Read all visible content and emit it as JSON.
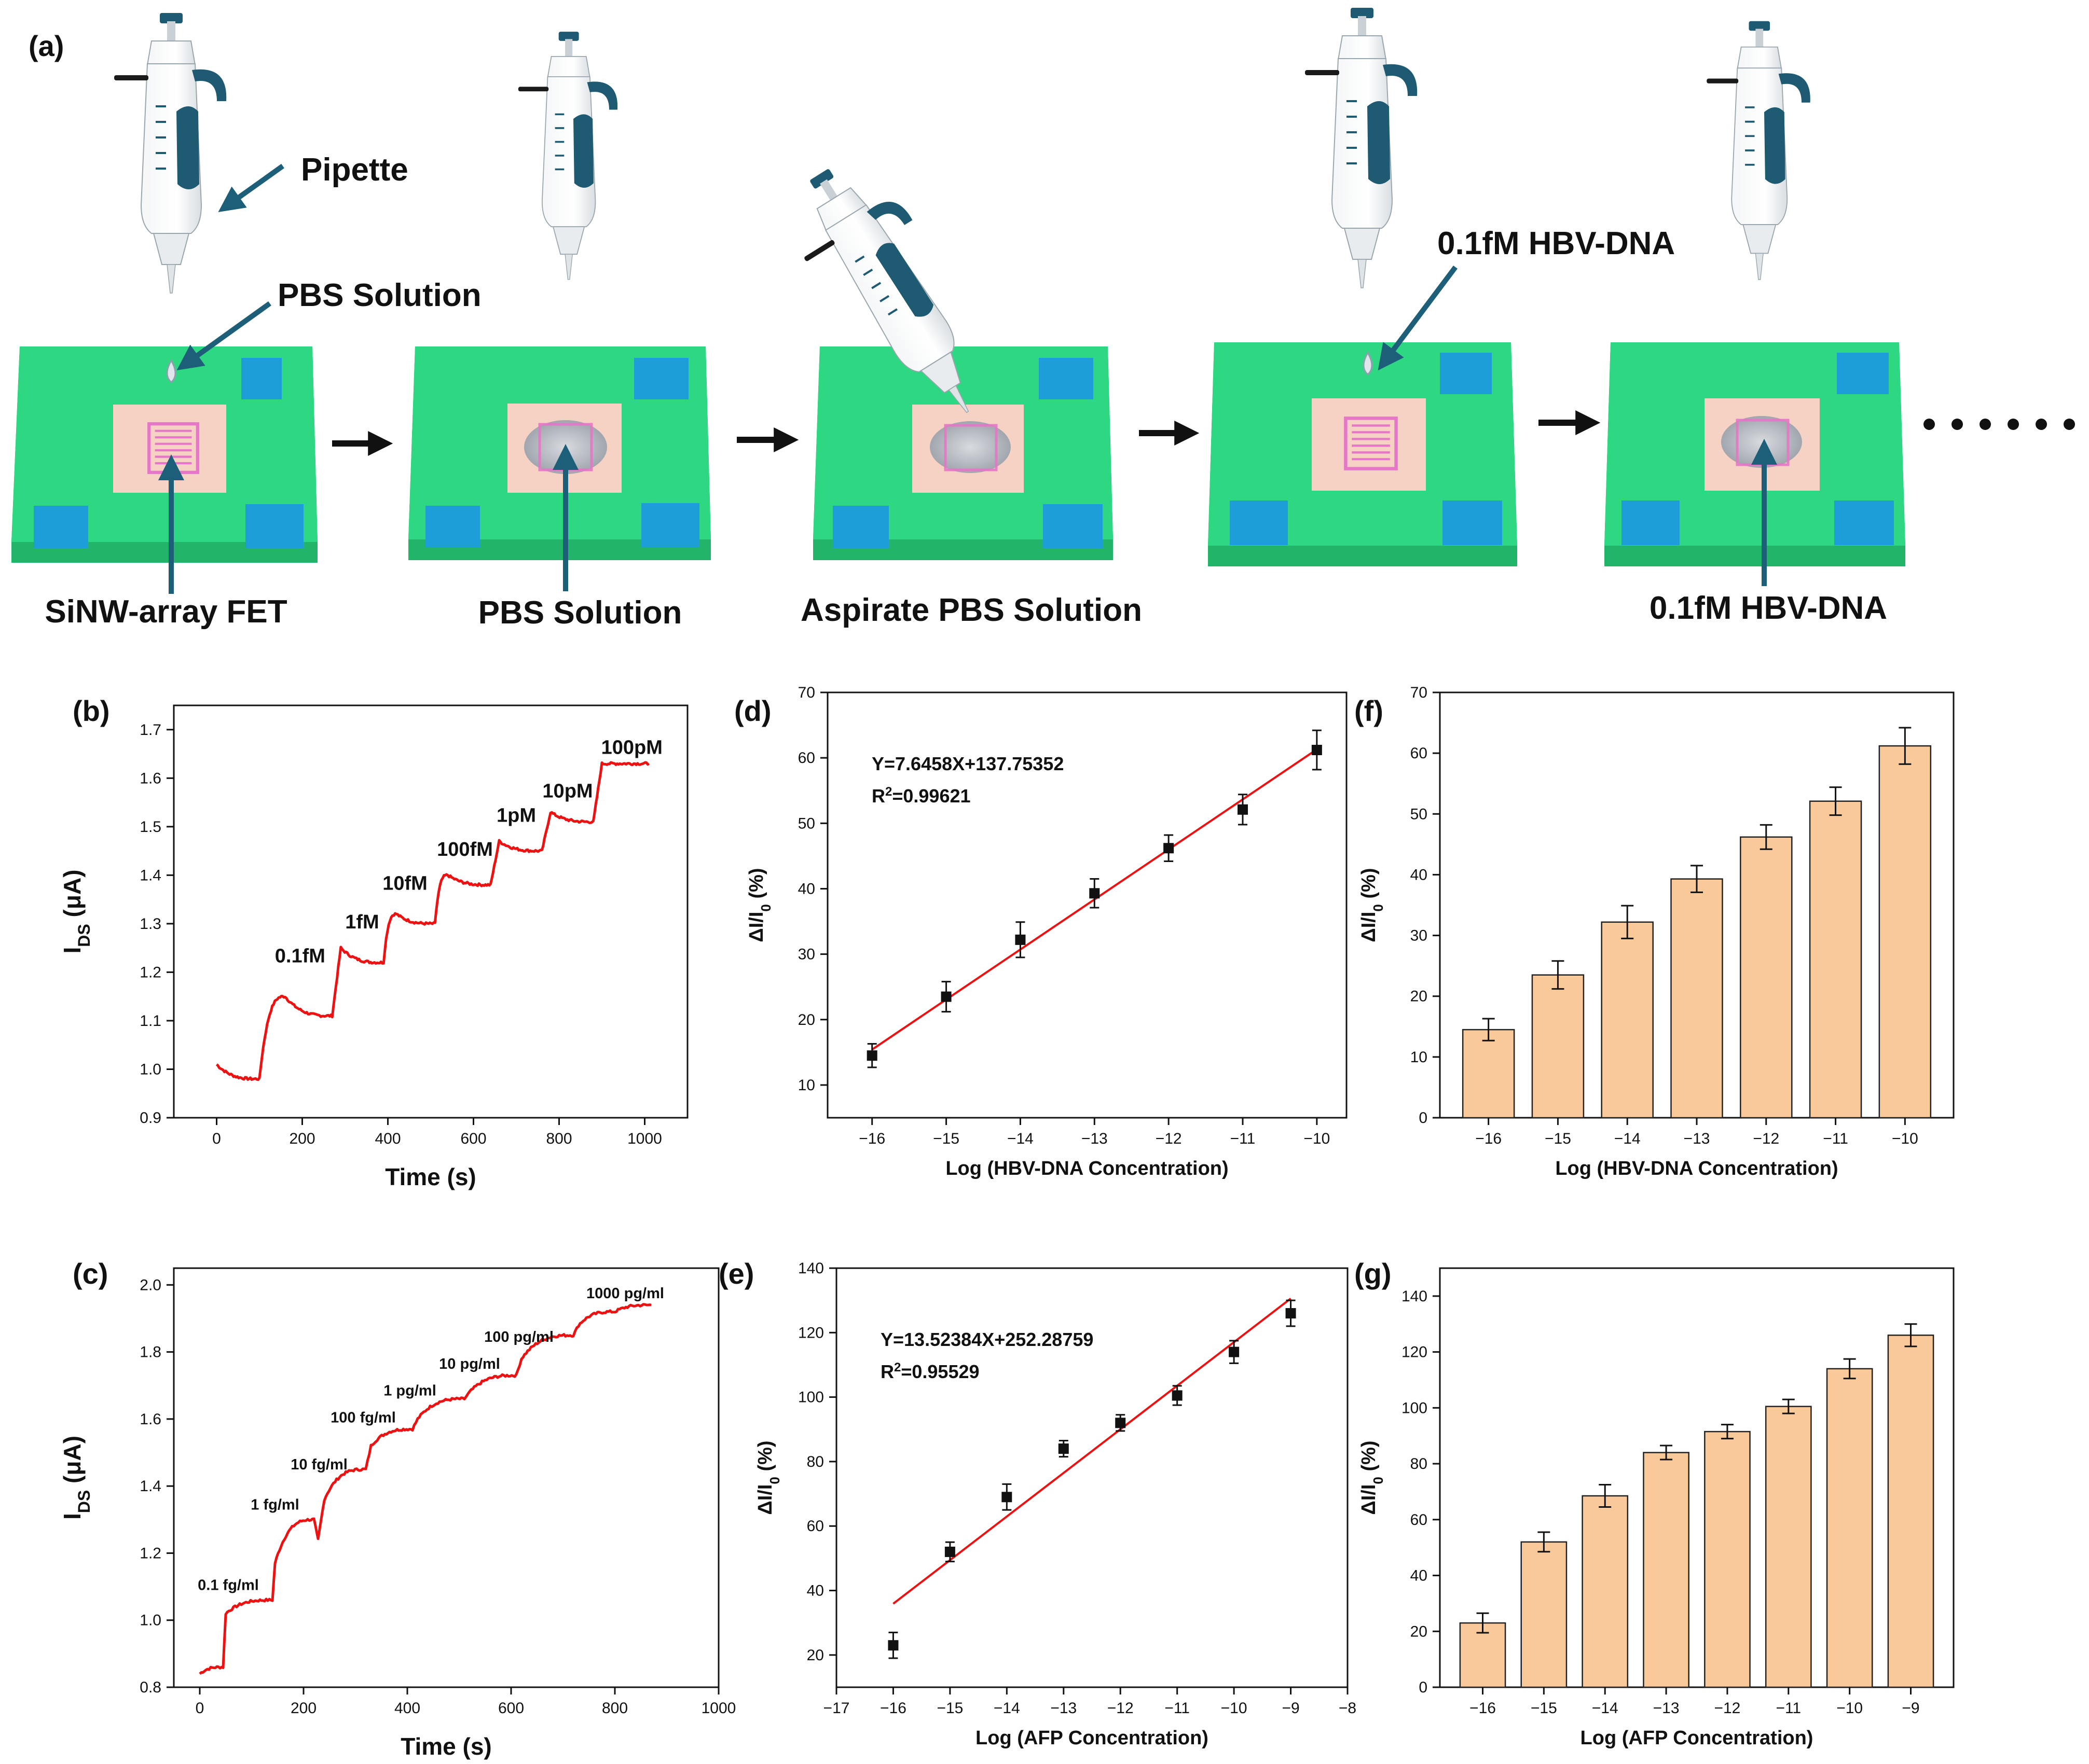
{
  "figure": {
    "panel_labels": {
      "a": "(a)",
      "b": "(b)",
      "c": "(c)",
      "d": "(d)",
      "e": "(e)",
      "f": "(f)",
      "g": "(g)"
    },
    "schematic": {
      "callout_pipette": "Pipette",
      "callout_pbs": "PBS Solution",
      "callout_hbv": "0.1fM HBV-DNA",
      "step_labels": [
        "SiNW-array FET",
        "PBS Solution",
        "Aspirate PBS Solution",
        "",
        "0.1fM HBV-DNA"
      ],
      "colors": {
        "board": "#2ed882",
        "chip": "#f6d2c4",
        "pad": "#1e9ed8",
        "pattern": "#e676c8",
        "arrow": "#111111",
        "callout_arrow": "#1d5f78"
      }
    }
  },
  "chart_data": [
    {
      "id": "b",
      "type": "line",
      "xlabel": "Time (s)",
      "ylabel": "I",
      "ylabel_sub": "DS",
      "ylabel_unit": " (μA)",
      "xlim": [
        -100,
        1100
      ],
      "ylim": [
        0.9,
        1.75
      ],
      "xticks": [
        0,
        200,
        400,
        600,
        800,
        1000
      ],
      "yticks": [
        0.9,
        1.0,
        1.1,
        1.2,
        1.3,
        1.4,
        1.5,
        1.6,
        1.7
      ],
      "ytick_decimals": 1,
      "color": "#ee1111",
      "levels": [
        {
          "x": 0,
          "y": 1.01
        },
        {
          "x": 100,
          "y": 0.98
        },
        {
          "x": 160,
          "y": 1.15
        },
        {
          "x": 270,
          "y": 1.11
        },
        {
          "x": 290,
          "y": 1.25
        },
        {
          "x": 390,
          "y": 1.22
        },
        {
          "x": 420,
          "y": 1.32
        },
        {
          "x": 510,
          "y": 1.3
        },
        {
          "x": 540,
          "y": 1.4
        },
        {
          "x": 640,
          "y": 1.38
        },
        {
          "x": 660,
          "y": 1.47
        },
        {
          "x": 760,
          "y": 1.45
        },
        {
          "x": 780,
          "y": 1.53
        },
        {
          "x": 880,
          "y": 1.51
        },
        {
          "x": 900,
          "y": 1.63
        },
        {
          "x": 1010,
          "y": 1.63
        }
      ],
      "annotations": [
        {
          "text": "0.1fM",
          "x": 195,
          "y": 1.22
        },
        {
          "text": "1fM",
          "x": 340,
          "y": 1.29
        },
        {
          "text": "10fM",
          "x": 440,
          "y": 1.37
        },
        {
          "text": "100fM",
          "x": 580,
          "y": 1.44
        },
        {
          "text": "1pM",
          "x": 700,
          "y": 1.51
        },
        {
          "text": "10pM",
          "x": 820,
          "y": 1.56
        },
        {
          "text": "100pM",
          "x": 970,
          "y": 1.65
        }
      ]
    },
    {
      "id": "c",
      "type": "line",
      "xlabel": "Time (s)",
      "ylabel": "I",
      "ylabel_sub": "DS",
      "ylabel_unit": " (μA)",
      "xlim": [
        -50,
        1000
      ],
      "ylim": [
        0.8,
        2.05
      ],
      "xticks": [
        0,
        200,
        400,
        600,
        800,
        1000
      ],
      "yticks": [
        0.8,
        1.0,
        1.2,
        1.4,
        1.6,
        1.8,
        2.0
      ],
      "ytick_decimals": 1,
      "color": "#ee1111",
      "levels": [
        {
          "x": 0,
          "y": 0.84
        },
        {
          "x": 45,
          "y": 0.86
        },
        {
          "x": 50,
          "y": 1.02
        },
        {
          "x": 140,
          "y": 1.06
        },
        {
          "x": 145,
          "y": 1.17
        },
        {
          "x": 220,
          "y": 1.3
        },
        {
          "x": 228,
          "y": 1.24
        },
        {
          "x": 240,
          "y": 1.36
        },
        {
          "x": 320,
          "y": 1.45
        },
        {
          "x": 330,
          "y": 1.52
        },
        {
          "x": 410,
          "y": 1.57
        },
        {
          "x": 420,
          "y": 1.6
        },
        {
          "x": 510,
          "y": 1.66
        },
        {
          "x": 520,
          "y": 1.68
        },
        {
          "x": 610,
          "y": 1.73
        },
        {
          "x": 620,
          "y": 1.78
        },
        {
          "x": 720,
          "y": 1.85
        },
        {
          "x": 730,
          "y": 1.88
        },
        {
          "x": 800,
          "y": 1.92
        },
        {
          "x": 870,
          "y": 1.94
        }
      ],
      "annotations": [
        {
          "text": "0.1 fg/ml",
          "x": 55,
          "y": 1.09
        },
        {
          "text": "1 fg/ml",
          "x": 145,
          "y": 1.33
        },
        {
          "text": "10 fg/ml",
          "x": 230,
          "y": 1.45
        },
        {
          "text": "100 fg/ml",
          "x": 315,
          "y": 1.59
        },
        {
          "text": "1 pg/ml",
          "x": 405,
          "y": 1.67
        },
        {
          "text": "10 pg/ml",
          "x": 520,
          "y": 1.75
        },
        {
          "text": "100 pg/ml",
          "x": 615,
          "y": 1.83
        },
        {
          "text": "1000 pg/ml",
          "x": 820,
          "y": 1.96
        }
      ]
    },
    {
      "id": "d",
      "type": "scatter",
      "xlabel": "Log (HBV-DNA Concentration)",
      "ylabel": "ΔI/I",
      "ylabel_sub": "0",
      "ylabel_unit": " (%)",
      "xlim": [
        -16.6,
        -9.6
      ],
      "ylim": [
        5,
        70
      ],
      "xticks": [
        -16,
        -15,
        -14,
        -13,
        -12,
        -11,
        -10
      ],
      "yticks": [
        10,
        20,
        30,
        40,
        50,
        60,
        70
      ],
      "x": [
        -16,
        -15,
        -14,
        -13,
        -12,
        -11,
        -10
      ],
      "y": [
        14.5,
        23.5,
        32.2,
        39.3,
        46.2,
        52.1,
        61.2
      ],
      "err": [
        1.8,
        2.3,
        2.7,
        2.2,
        2.0,
        2.3,
        3.0
      ],
      "fit": {
        "slope": 7.6458,
        "intercept": 137.75352,
        "x_range": [
          -16,
          -10
        ]
      },
      "equation": "Y=7.6458X+137.75352",
      "r2_prefix": "R",
      "r2_sup": "2",
      "r2_value": "=0.99621",
      "fit_color": "#ee1111"
    },
    {
      "id": "e",
      "type": "scatter",
      "xlabel": "Log (AFP Concentration)",
      "ylabel": "ΔI/I",
      "ylabel_sub": "0",
      "ylabel_unit": " (%)",
      "xlim": [
        -17,
        -8
      ],
      "ylim": [
        10,
        140
      ],
      "xticks": [
        -17,
        -16,
        -15,
        -14,
        -13,
        -12,
        -11,
        -10,
        -9,
        -8
      ],
      "yticks": [
        20,
        40,
        60,
        80,
        100,
        120,
        140
      ],
      "x": [
        -16,
        -15,
        -14,
        -13,
        -12,
        -11,
        -10,
        -9
      ],
      "y": [
        23,
        52,
        69,
        84,
        92,
        100.5,
        114,
        126
      ],
      "err": [
        4,
        3,
        4,
        2.5,
        2.5,
        3,
        3.5,
        4
      ],
      "fit": {
        "slope": 13.52384,
        "intercept": 252.28759,
        "x_range": [
          -16,
          -9
        ]
      },
      "equation": "Y=13.52384X+252.28759",
      "r2_prefix": "R",
      "r2_sup": "2",
      "r2_value": "=0.95529",
      "fit_color": "#ee1111"
    },
    {
      "id": "f",
      "type": "bar",
      "xlabel": "Log (HBV-DNA Concentration)",
      "ylabel": "ΔI/I",
      "ylabel_sub": "0",
      "ylabel_unit": " (%)",
      "ylim": [
        0,
        70
      ],
      "yticks": [
        0,
        10,
        20,
        30,
        40,
        50,
        60,
        70
      ],
      "categories": [
        "−16",
        "−15",
        "−14",
        "−13",
        "−12",
        "−11",
        "−10"
      ],
      "values": [
        14.5,
        23.5,
        32.2,
        39.3,
        46.2,
        52.1,
        61.2
      ],
      "err": [
        1.8,
        2.3,
        2.7,
        2.2,
        2.0,
        2.3,
        3.0
      ],
      "bar_color": "#f9c99a"
    },
    {
      "id": "g",
      "type": "bar",
      "xlabel": "Log (AFP Concentration)",
      "ylabel": "ΔI/I",
      "ylabel_sub": "0",
      "ylabel_unit": " (%)",
      "ylim": [
        0,
        150
      ],
      "yticks": [
        0,
        20,
        40,
        60,
        80,
        100,
        120,
        140
      ],
      "categories": [
        "−16",
        "−15",
        "−14",
        "−13",
        "−12",
        "−11",
        "−10",
        "−9"
      ],
      "values": [
        23,
        52,
        68.5,
        84,
        91.5,
        100.5,
        114,
        126
      ],
      "err": [
        3.5,
        3.5,
        4,
        2.5,
        2.5,
        2.5,
        3.5,
        4
      ],
      "bar_color": "#f9c99a"
    }
  ]
}
